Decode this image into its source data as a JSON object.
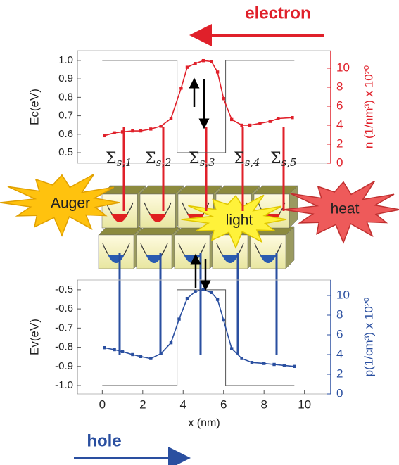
{
  "chart_data": [
    {
      "type": "line",
      "y_label": "Ec(eV)",
      "y2_label": "n (1/nm³) x 10²⁰",
      "xlim": [
        -1.23,
        11.3
      ],
      "ylim": [
        0.443,
        1.053
      ],
      "yticks": [
        0.5,
        0.6,
        0.7,
        0.8,
        0.9,
        {
          "value": 1,
          "label": "1.0"
        }
      ],
      "y2lim": [
        0,
        11.85
      ],
      "y2ticks": [
        0,
        2,
        4,
        6,
        8,
        10
      ],
      "series": [
        {
          "color": "#555555",
          "markers": false,
          "x": [
            0,
            3.7,
            3.7,
            6.1,
            6.1,
            9.5
          ],
          "values": [
            1,
            1,
            0.5,
            0.5,
            1,
            1
          ]
        },
        {
          "color": "#e0202a",
          "markers": true,
          "axis": "y2",
          "x": [
            0.1,
            0.6,
            1.0,
            1.5,
            1.9,
            2.4,
            2.9,
            3.4,
            3.9,
            4.2,
            4.6,
            5.0,
            5.4,
            5.7,
            6.0,
            6.4,
            6.9,
            7.3,
            7.8,
            8.3,
            8.7,
            9.4
          ],
          "values": [
            2.9,
            3.2,
            3.3,
            3.4,
            3.4,
            3.6,
            3.9,
            4.7,
            7.9,
            10.1,
            10.5,
            10.8,
            10.7,
            9.6,
            6.8,
            4.6,
            4.0,
            4.0,
            4.2,
            4.4,
            4.7,
            4.8
          ]
        }
      ]
    },
    {
      "type": "line",
      "y_label": "Ev(eV)",
      "y2_label": "p(1/cm³) x 10²⁰",
      "x_label": "x (nm)",
      "xlim": [
        -1.23,
        11.3
      ],
      "xticks": [
        0,
        2,
        4,
        6,
        8,
        10
      ],
      "ylim": [
        -1.044,
        -0.449
      ],
      "yticks": [
        {
          "value": -1,
          "label": "-1.0"
        },
        -0.9,
        -0.8,
        -0.7,
        -0.6,
        -0.5
      ],
      "y2lim": [
        0,
        11.57
      ],
      "y2ticks": [
        0,
        2,
        4,
        6,
        8,
        10
      ],
      "series": [
        {
          "color": "#555555",
          "markers": false,
          "x": [
            0,
            3.7,
            3.7,
            6.1,
            6.1,
            9.5
          ],
          "values": [
            -1,
            -1,
            -0.5,
            -0.5,
            -1,
            -1
          ]
        },
        {
          "color": "#2a4fa0",
          "markers": true,
          "axis": "y2",
          "x": [
            0.1,
            0.6,
            1.0,
            1.5,
            1.9,
            2.4,
            2.9,
            3.4,
            3.8,
            4.2,
            4.6,
            5.0,
            5.4,
            5.7,
            6.0,
            6.4,
            6.9,
            7.4,
            8.0,
            8.5,
            9.0,
            9.5
          ],
          "values": [
            4.7,
            4.5,
            4.3,
            4.0,
            3.8,
            3.6,
            4.1,
            5.2,
            7.6,
            9.7,
            10.4,
            10.6,
            10.3,
            9.6,
            7.5,
            4.6,
            3.6,
            3.2,
            3.1,
            3.0,
            2.9,
            2.8
          ]
        }
      ]
    }
  ],
  "annotations": {
    "electron": "electron",
    "hole": "hole",
    "auger": "Auger",
    "light": "light",
    "heat": "heat",
    "sigma": [
      {
        "symbol": "Σ",
        "subscript": "s,1"
      },
      {
        "symbol": "Σ",
        "subscript": "s,2"
      },
      {
        "symbol": "Σ",
        "subscript": "s,3"
      },
      {
        "symbol": "Σ",
        "subscript": "s,4"
      },
      {
        "symbol": "Σ",
        "subscript": "s,5"
      }
    ]
  }
}
